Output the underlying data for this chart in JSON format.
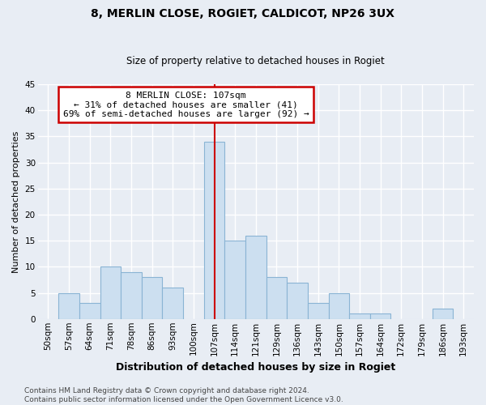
{
  "title": "8, MERLIN CLOSE, ROGIET, CALDICOT, NP26 3UX",
  "subtitle": "Size of property relative to detached houses in Rogiet",
  "xlabel": "Distribution of detached houses by size in Rogiet",
  "ylabel": "Number of detached properties",
  "bin_labels": [
    "50sqm",
    "57sqm",
    "64sqm",
    "71sqm",
    "78sqm",
    "86sqm",
    "93sqm",
    "100sqm",
    "107sqm",
    "114sqm",
    "121sqm",
    "129sqm",
    "136sqm",
    "143sqm",
    "150sqm",
    "157sqm",
    "164sqm",
    "172sqm",
    "179sqm",
    "186sqm",
    "193sqm"
  ],
  "counts": [
    0,
    5,
    3,
    10,
    9,
    8,
    6,
    0,
    34,
    15,
    16,
    8,
    7,
    3,
    5,
    1,
    1,
    0,
    0,
    2,
    0
  ],
  "bar_color": "#ccdff0",
  "bar_edge_color": "#8ab4d4",
  "reference_bin_index": 8,
  "ylim": [
    0,
    45
  ],
  "yticks": [
    0,
    5,
    10,
    15,
    20,
    25,
    30,
    35,
    40,
    45
  ],
  "annotation_title": "8 MERLIN CLOSE: 107sqm",
  "annotation_line1": "← 31% of detached houses are smaller (41)",
  "annotation_line2": "69% of semi-detached houses are larger (92) →",
  "annotation_box_color": "#ffffff",
  "annotation_box_edge_color": "#cc0000",
  "footer_line1": "Contains HM Land Registry data © Crown copyright and database right 2024.",
  "footer_line2": "Contains public sector information licensed under the Open Government Licence v3.0.",
  "background_color": "#e8edf4",
  "plot_background_color": "#e8edf4",
  "grid_color": "#ffffff",
  "reference_line_color": "#cc0000",
  "title_fontsize": 10,
  "subtitle_fontsize": 8.5,
  "xlabel_fontsize": 9,
  "ylabel_fontsize": 8,
  "tick_fontsize": 7.5,
  "footer_fontsize": 6.5
}
